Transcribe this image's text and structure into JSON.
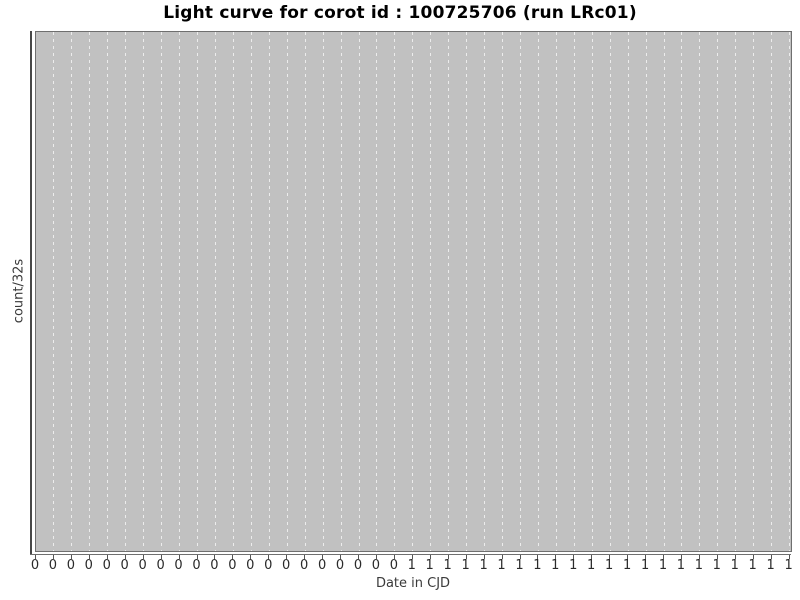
{
  "chart_data": {
    "type": "line",
    "title": "Light curve for corot id : 100725706 (run LRc01)",
    "xlabel": "Date in CJD",
    "ylabel": "count/32s",
    "x_tick_labels": [
      "0",
      "0",
      "0",
      "0",
      "0",
      "0",
      "0",
      "0",
      "0",
      "0",
      "0",
      "0",
      "0",
      "0",
      "0",
      "0",
      "0",
      "0",
      "0",
      "0",
      "0",
      "1",
      "1",
      "1",
      "1",
      "1",
      "1",
      "1",
      "1",
      "1",
      "1",
      "1",
      "1",
      "1",
      "1",
      "1",
      "1",
      "1",
      "1",
      "1",
      "1",
      "1",
      "1"
    ],
    "y_tick_labels": [],
    "series": [],
    "visible_data_points": "none",
    "legend": null,
    "grid": {
      "vertical": true,
      "horizontal": false,
      "style": "dashed",
      "color": "#ececec"
    },
    "colors": {
      "page_background": "#ffffff",
      "plot_background": "#c1c1c1",
      "plot_border": "#6f6f6f",
      "axis_spine": "#474747",
      "tick": "#555555",
      "tick_label": "#2a2a2a",
      "axis_label": "#3a3a3a",
      "title": "#000000"
    }
  }
}
